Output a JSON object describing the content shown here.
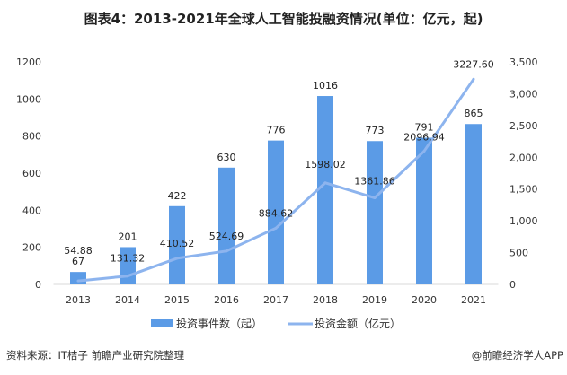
{
  "chart_data": {
    "type": "bar+line",
    "title": "图表4：2013-2021年全球人工智能投融资情况(单位：亿元，起)",
    "categories": [
      "2013",
      "2014",
      "2015",
      "2016",
      "2017",
      "2018",
      "2019",
      "2020",
      "2021"
    ],
    "series": [
      {
        "name": "投资事件数（起）",
        "type": "bar",
        "axis": "left",
        "color": "#5b9be6",
        "values": [
          67,
          201,
          422,
          630,
          776,
          1016,
          773,
          791,
          865
        ],
        "labels": [
          "67",
          "201",
          "422",
          "630",
          "776",
          "1016",
          "773",
          "791",
          "865"
        ]
      },
      {
        "name": "投资金额（亿元）",
        "type": "line",
        "axis": "right",
        "color": "#8db4ee",
        "values": [
          54.88,
          131.32,
          410.52,
          524.69,
          884.62,
          1598.02,
          1361.86,
          2096.94,
          3227.6
        ],
        "labels": [
          "54.88",
          "131.32",
          "410.52",
          "524.69",
          "884.62",
          "1598.02",
          "1361.86",
          "2096.94",
          "3227.60"
        ]
      }
    ],
    "left_axis": {
      "ylim": [
        0,
        1200
      ],
      "ticks": [
        "0",
        "200",
        "400",
        "600",
        "800",
        "1000",
        "1200"
      ]
    },
    "right_axis": {
      "ylim": [
        0,
        3500
      ],
      "ticks": [
        "0",
        "500",
        "1,000",
        "1,500",
        "2,000",
        "2,500",
        "3,000",
        "3,500"
      ]
    },
    "grid": false,
    "legend": "bottom"
  },
  "footer": {
    "source": "资料来源：IT桔子 前瞻产业研究院整理",
    "brand": "@前瞻经济学人APP"
  }
}
